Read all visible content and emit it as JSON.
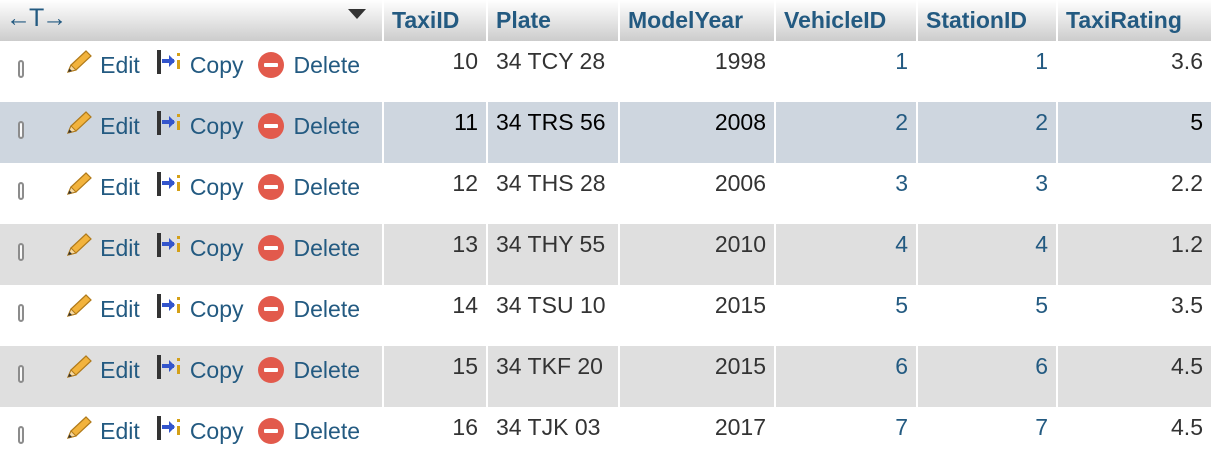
{
  "header": {
    "columns": [
      "TaxiID",
      "Plate",
      "ModelYear",
      "VehicleID",
      "StationID",
      "TaxiRating"
    ]
  },
  "actions": {
    "edit": "Edit",
    "copy": "Copy",
    "delete": "Delete"
  },
  "rows": [
    {
      "TaxiID": "10",
      "Plate": "34 TCY 28",
      "ModelYear": "1998",
      "VehicleID": "1",
      "StationID": "1",
      "TaxiRating": "3.6"
    },
    {
      "TaxiID": "11",
      "Plate": "34 TRS 56",
      "ModelYear": "2008",
      "VehicleID": "2",
      "StationID": "2",
      "TaxiRating": "5"
    },
    {
      "TaxiID": "12",
      "Plate": "34 THS 28",
      "ModelYear": "2006",
      "VehicleID": "3",
      "StationID": "3",
      "TaxiRating": "2.2"
    },
    {
      "TaxiID": "13",
      "Plate": "34 THY 55",
      "ModelYear": "2010",
      "VehicleID": "4",
      "StationID": "4",
      "TaxiRating": "1.2"
    },
    {
      "TaxiID": "14",
      "Plate": "34 TSU 10",
      "ModelYear": "2015",
      "VehicleID": "5",
      "StationID": "5",
      "TaxiRating": "3.5"
    },
    {
      "TaxiID": "15",
      "Plate": "34 TKF 20",
      "ModelYear": "2015",
      "VehicleID": "6",
      "StationID": "6",
      "TaxiRating": "4.5"
    },
    {
      "TaxiID": "16",
      "Plate": "34 TJK 03",
      "ModelYear": "2017",
      "VehicleID": "7",
      "StationID": "7",
      "TaxiRating": "4.5"
    }
  ],
  "colors": {
    "link": "#235a81",
    "hover_row": "#ced6df",
    "even_row": "#dfdfdf",
    "delete_icon": "#e25a4c"
  }
}
